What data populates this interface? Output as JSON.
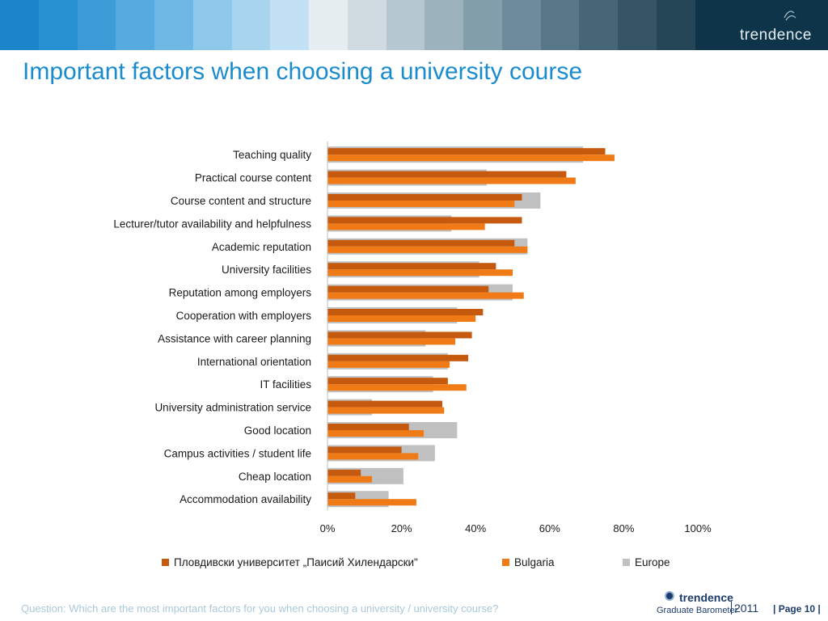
{
  "header": {
    "stripe_colors": [
      "#1a85c8",
      "#2891d2",
      "#3b9cd8",
      "#55aadf",
      "#6fb8e5",
      "#8ec8eb",
      "#a8d4ef",
      "#c2e1f4",
      "#e6eef2",
      "#cfdbe1",
      "#b5c7d0",
      "#9cb3be",
      "#849fac",
      "#6d8b9a",
      "#587888",
      "#466676",
      "#355565",
      "#254656"
    ],
    "brand_bg": "#0d3448",
    "logo_text": "trendence"
  },
  "title": "Important factors when choosing a university course",
  "chart_data": {
    "type": "bar",
    "orientation": "horizontal",
    "categories": [
      "Teaching quality",
      "Practical course content",
      "Course content and structure",
      "Lecturer/tutor availability and helpfulness",
      "Academic reputation",
      "University facilities",
      "Reputation among employers",
      "Cooperation with employers",
      "Assistance with career planning",
      "International orientation",
      "IT facilities",
      "University administration service",
      "Good location",
      "Campus activities / student life",
      "Cheap location",
      "Accommodation availability"
    ],
    "series": [
      {
        "name": "Пловдивски университет „Паисий Хилендарски\"",
        "color": "#c55a0f",
        "values": [
          75,
          64.5,
          52.5,
          52.5,
          50.5,
          45.5,
          43.5,
          42,
          39,
          38,
          32.5,
          31,
          22,
          20,
          9,
          7.5
        ]
      },
      {
        "name": "Bulgaria",
        "color": "#f07a15",
        "values": [
          77.5,
          67,
          50.5,
          42.5,
          54,
          50,
          53,
          40,
          34.5,
          33,
          37.5,
          31.5,
          26,
          24.5,
          12,
          24
        ]
      },
      {
        "name": "Europe",
        "color": "#c0c0c0",
        "values": [
          69,
          43,
          57.5,
          33.5,
          54,
          41,
          50,
          35,
          26.5,
          32.5,
          28.5,
          12,
          35,
          29,
          20.5,
          16.5
        ]
      }
    ],
    "xlim": [
      0,
      100
    ],
    "xticks": [
      "0%",
      "20%",
      "40%",
      "60%",
      "80%",
      "100%"
    ],
    "legend_position": "bottom",
    "grid": false
  },
  "footer": {
    "question": "Question: Which are the most important factors for you when choosing a university / university course?",
    "logo_name": "trendence",
    "logo_sub": "Graduate Barometer",
    "logo_year": "2011",
    "page": "| Page 10 |"
  }
}
